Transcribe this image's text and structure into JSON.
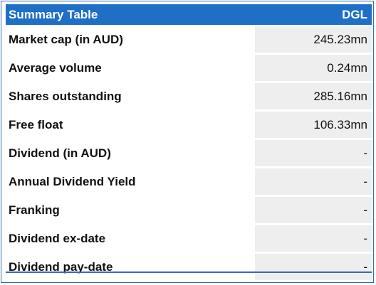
{
  "table": {
    "title": "Summary Table",
    "ticker": "DGL",
    "rows": [
      {
        "label": "Market cap (in AUD)",
        "value": "245.23mn"
      },
      {
        "label": "Average volume",
        "value": "0.24mn"
      },
      {
        "label": "Shares outstanding",
        "value": "285.16mn"
      },
      {
        "label": "Free float",
        "value": "106.33mn"
      },
      {
        "label": "Dividend (in AUD)",
        "value": "-"
      },
      {
        "label": "Annual Dividend Yield",
        "value": "-"
      },
      {
        "label": "Franking",
        "value": "-"
      },
      {
        "label": "Dividend ex-date",
        "value": "-"
      },
      {
        "label": "Dividend pay-date",
        "value": "-"
      }
    ]
  },
  "colors": {
    "header_bg": "#1f6fc6",
    "border": "#2f6db5",
    "value_bg": "#eeeeee"
  }
}
